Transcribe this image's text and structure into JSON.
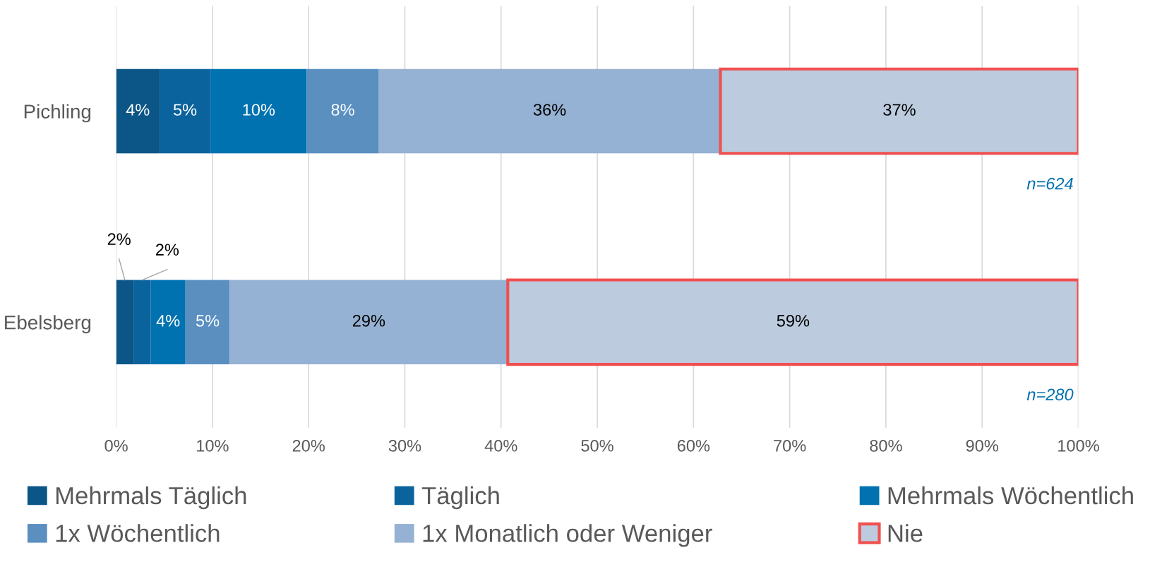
{
  "chart_data": {
    "type": "bar",
    "orientation": "horizontal",
    "stacked": true,
    "categories": [
      "Pichling",
      "Ebelsberg"
    ],
    "series": [
      {
        "name": "Mehrmals Täglich",
        "color": "#0b5587",
        "values": [
          4.5,
          1.8
        ],
        "value_labels": [
          "4%",
          "2%"
        ]
      },
      {
        "name": "Täglich",
        "color": "#0a639c",
        "values": [
          5.3,
          1.8
        ],
        "value_labels": [
          "5%",
          "2%"
        ]
      },
      {
        "name": "Mehrmals Wöchentlich",
        "color": "#0072b0",
        "values": [
          10.0,
          3.6
        ],
        "value_labels": [
          "10%",
          "4%"
        ]
      },
      {
        "name": "1x Wöchentlich",
        "color": "#5a8fc0",
        "values": [
          7.5,
          4.6
        ],
        "value_labels": [
          "8%",
          "5%"
        ]
      },
      {
        "name": "1x Monatlich oder Weniger",
        "color": "#95b1d3",
        "values": [
          35.5,
          28.9
        ],
        "value_labels": [
          "36%",
          "29%"
        ]
      },
      {
        "name": "Nie",
        "color": "#bccbde",
        "values": [
          37.2,
          59.3
        ],
        "value_labels": [
          "37%",
          "59%"
        ]
      }
    ],
    "xlim": [
      0,
      100
    ],
    "xticks": [
      {
        "value": 0,
        "label": "0%"
      },
      {
        "value": 10,
        "label": "10%"
      },
      {
        "value": 20,
        "label": "20%"
      },
      {
        "value": 30,
        "label": "30%"
      },
      {
        "value": 40,
        "label": "40%"
      },
      {
        "value": 50,
        "label": "50%"
      },
      {
        "value": 60,
        "label": "60%"
      },
      {
        "value": 70,
        "label": "70%"
      },
      {
        "value": 80,
        "label": "80%"
      },
      {
        "value": 90,
        "label": "90%"
      },
      {
        "value": 100,
        "label": "100%"
      }
    ],
    "grid": "x",
    "legend": "bottom",
    "annotations": [
      "n=624",
      "n=280"
    ]
  }
}
